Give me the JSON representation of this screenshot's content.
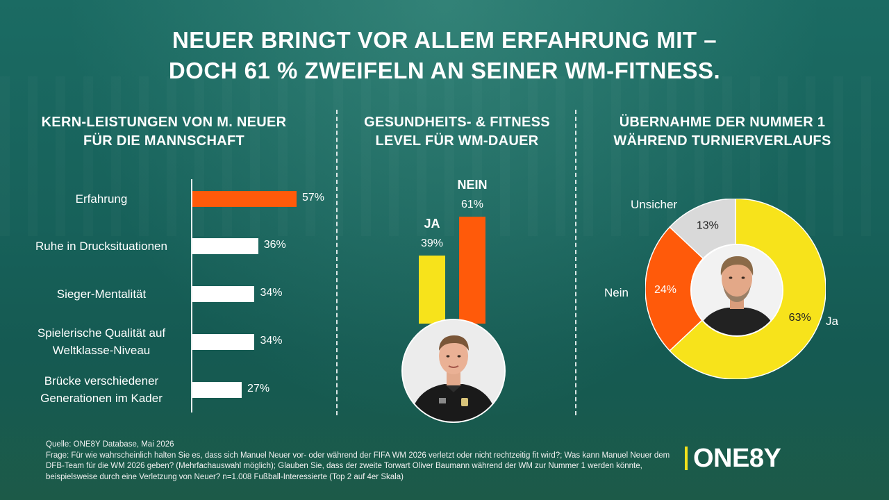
{
  "headline": {
    "line1": "NEUER BRINGT VOR ALLEM ERFAHRUNG MIT –",
    "line2": "DOCH 61 % ZWEIFELN AN SEINER WM-FITNESS."
  },
  "sections": {
    "left": {
      "line1": "KERN-LEISTUNGEN VON M. NEUER",
      "line2": "FÜR DIE MANNSCHAFT"
    },
    "middle": {
      "line1": "GESUNDHEITS- & FITNESS",
      "line2": "LEVEL FÜR WM-DAUER"
    },
    "right": {
      "line1": "ÜBERNAHME DER NUMMER 1",
      "line2": "WÄHREND TURNIERVERLAUFS"
    }
  },
  "chart_data": [
    {
      "type": "bar",
      "orientation": "horizontal",
      "categories": [
        "Erfahrung",
        "Ruhe in Drucksituationen",
        "Sieger-Mentalität",
        "Spielerische Qualität auf Weltklasse-Niveau",
        "Brücke verschiedener Generationen im Kader"
      ],
      "category_lines": [
        [
          "Erfahrung"
        ],
        [
          "Ruhe in Drucksituationen"
        ],
        [
          "Sieger-Mentalität"
        ],
        [
          "Spielerische Qualität auf",
          "Weltklasse-Niveau"
        ],
        [
          "Brücke verschiedener",
          "Generationen im Kader"
        ]
      ],
      "values": [
        57,
        36,
        34,
        34,
        27
      ],
      "value_labels": [
        "57%",
        "36%",
        "34%",
        "34%",
        "27%"
      ],
      "colors": [
        "#ff5a0a",
        "#ffffff",
        "#ffffff",
        "#ffffff",
        "#ffffff"
      ],
      "xlim": [
        0,
        100
      ]
    },
    {
      "type": "bar",
      "orientation": "vertical",
      "categories": [
        "JA",
        "NEIN"
      ],
      "values": [
        39,
        61
      ],
      "value_labels": [
        "39%",
        "61%"
      ],
      "colors": [
        "#f7e31b",
        "#ff5a0a"
      ],
      "ylim": [
        0,
        100
      ]
    },
    {
      "type": "pie",
      "donut": true,
      "categories": [
        "Ja",
        "Nein",
        "Unsicher"
      ],
      "values": [
        63,
        24,
        13
      ],
      "value_labels": [
        "63%",
        "24%",
        "13%"
      ],
      "colors": [
        "#f7e31b",
        "#ff5a0a",
        "#d9d9d9"
      ]
    }
  ],
  "footnote": {
    "line1": "Quelle: ONE8Y Database, Mai 2026",
    "line2": "Frage: Für wie wahrscheinlich halten Sie es, dass sich Manuel Neuer vor- oder während der FIFA WM 2026 verletzt oder nicht rechtzeitig fit wird?; Was kann Manuel Neuer dem DFB-Team für die WM 2026 geben? (Mehrfachauswahl möglich); Glauben Sie, dass der zweite Torwart Oliver Baumann während der WM zur Nummer 1 werden könnte, beispielsweise durch eine Verletzung von Neuer? n=1.008 Fußball-Interessierte (Top 2 auf 4er Skala)"
  },
  "logo": {
    "text": "ONE8Y",
    "accent": "#f4e21b"
  },
  "icons": {
    "portrait_left": "goalkeeper-portrait-icon",
    "portrait_right": "player-portrait-icon"
  }
}
